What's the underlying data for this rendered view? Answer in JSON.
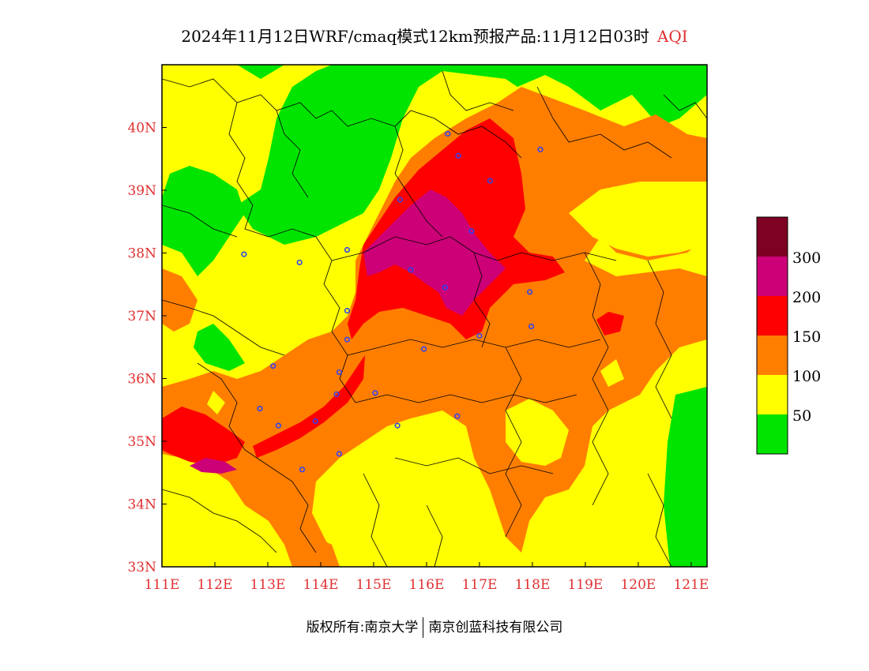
{
  "title": {
    "main": "2024年11月12日WRF/cmaq模式12km预报产品:11月12日03时",
    "variable": "AQI"
  },
  "footer": {
    "left": "版权所有:南京大学",
    "right": "南京创蓝科技有限公司"
  },
  "map": {
    "lon_range": [
      111,
      121.3
    ],
    "lat_range": [
      33,
      41
    ],
    "lon_ticks": [
      "111E",
      "112E",
      "113E",
      "114E",
      "115E",
      "116E",
      "117E",
      "118E",
      "119E",
      "120E",
      "121E"
    ],
    "lat_ticks": [
      "33N",
      "34N",
      "35N",
      "36N",
      "37N",
      "38N",
      "39N",
      "40N"
    ],
    "colors": {
      "aqi_0_50": "#00e400",
      "aqi_50_100": "#ffff00",
      "aqi_100_150": "#ff7e00",
      "aqi_150_200": "#ff0000",
      "aqi_200_300": "#cc0077",
      "aqi_300_plus": "#7e0023",
      "city_marker": "#3344ee"
    },
    "cities": [
      {
        "lon": 116.4,
        "lat": 39.9
      },
      {
        "lon": 116.6,
        "lat": 39.55
      },
      {
        "lon": 117.2,
        "lat": 39.15
      },
      {
        "lon": 118.15,
        "lat": 39.65
      },
      {
        "lon": 115.5,
        "lat": 38.85
      },
      {
        "lon": 114.5,
        "lat": 38.05
      },
      {
        "lon": 116.85,
        "lat": 38.35
      },
      {
        "lon": 115.7,
        "lat": 37.73
      },
      {
        "lon": 116.35,
        "lat": 37.45
      },
      {
        "lon": 117.95,
        "lat": 37.38
      },
      {
        "lon": 114.5,
        "lat": 37.08
      },
      {
        "lon": 114.5,
        "lat": 36.62
      },
      {
        "lon": 115.95,
        "lat": 36.47
      },
      {
        "lon": 117.0,
        "lat": 36.68
      },
      {
        "lon": 117.98,
        "lat": 36.83
      },
      {
        "lon": 113.1,
        "lat": 36.2
      },
      {
        "lon": 114.35,
        "lat": 36.1
      },
      {
        "lon": 114.3,
        "lat": 35.75
      },
      {
        "lon": 115.03,
        "lat": 35.77
      },
      {
        "lon": 112.85,
        "lat": 35.52
      },
      {
        "lon": 113.2,
        "lat": 35.25
      },
      {
        "lon": 113.9,
        "lat": 35.32
      },
      {
        "lon": 115.45,
        "lat": 35.25
      },
      {
        "lon": 116.58,
        "lat": 35.4
      },
      {
        "lon": 114.35,
        "lat": 34.8
      },
      {
        "lon": 113.65,
        "lat": 34.55
      },
      {
        "lon": 113.6,
        "lat": 37.85
      },
      {
        "lon": 112.55,
        "lat": 37.98
      }
    ]
  },
  "legend": {
    "ticks": [
      "300",
      "200",
      "150",
      "100",
      "50"
    ]
  }
}
